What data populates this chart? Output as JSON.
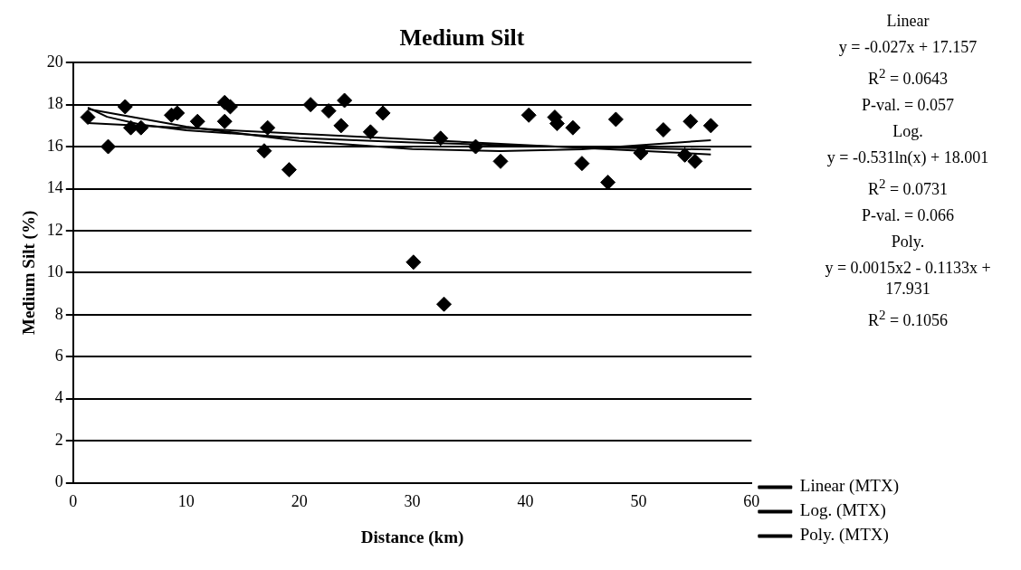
{
  "chart_data": {
    "type": "scatter",
    "title": "Medium Silt",
    "xlabel": "Distance (km)",
    "ylabel": "Medium Silt (%)",
    "xlim": [
      0,
      60
    ],
    "xticks": [
      0,
      10,
      20,
      30,
      40,
      50,
      60
    ],
    "ylim": [
      0,
      20
    ],
    "yticks": [
      0,
      2,
      4,
      6,
      8,
      10,
      12,
      14,
      16,
      18,
      20
    ],
    "grid": "y",
    "legend": "bottom right",
    "marker": "diamond",
    "series": [
      {
        "type": "scatter",
        "color": "#000000",
        "x": [
          1.3,
          3.1,
          4.6,
          5.1,
          6.0,
          8.7,
          9.2,
          11.0,
          13.4,
          13.4,
          13.9,
          16.9,
          17.2,
          19.1,
          21.0,
          22.6,
          23.7,
          24.0,
          26.3,
          27.4,
          30.1,
          32.5,
          32.8,
          35.6,
          37.8,
          40.3,
          42.6,
          42.8,
          44.2,
          45.0,
          47.3,
          48.0,
          50.2,
          52.2,
          54.1,
          54.6,
          55.0,
          56.4
        ],
        "values": [
          17.4,
          16.0,
          17.9,
          16.9,
          16.9,
          17.5,
          17.6,
          17.2,
          18.1,
          17.2,
          17.9,
          15.8,
          16.9,
          14.9,
          18.0,
          17.7,
          17.0,
          18.2,
          16.7,
          17.6,
          10.5,
          16.4,
          8.5,
          16.0,
          15.3,
          17.5,
          17.4,
          17.1,
          16.9,
          15.2,
          14.3,
          17.3,
          15.7,
          16.8,
          15.6,
          17.2,
          15.3,
          17.0
        ]
      },
      {
        "type": "line",
        "name": "Linear (MTX)",
        "color": "#000000",
        "marker": "none",
        "x": [
          1.3,
          56.4
        ],
        "values": [
          17.12,
          15.63
        ]
      },
      {
        "type": "line",
        "name": "Log. (MTX)",
        "color": "#000000",
        "marker": "none",
        "x": [
          1.3,
          3,
          6,
          10,
          20,
          30,
          40,
          56.4
        ],
        "values": [
          17.86,
          17.42,
          17.05,
          16.78,
          16.41,
          16.2,
          16.04,
          15.86
        ]
      },
      {
        "type": "line",
        "name": "Poly. (MTX)",
        "color": "#000000",
        "marker": "none",
        "x": [
          1.3,
          10,
          20,
          30,
          37.8,
          45,
          56.4
        ],
        "values": [
          17.79,
          16.95,
          16.27,
          15.88,
          15.79,
          15.87,
          16.31
        ]
      }
    ],
    "annotations": [
      "Linear",
      "y = -0.027x + 17.157",
      "R$^{2}$ = 0.0643",
      "P-val. = 0.057",
      "Log.",
      "y = -0.531ln(x) + 18.001",
      "R$^{2}$ = 0.0731",
      "P-val. = 0.066",
      "Poly.",
      "y = 0.0015x2 - 0.1133x + 17.931",
      "R$^{2}$ = 0.1056"
    ]
  }
}
